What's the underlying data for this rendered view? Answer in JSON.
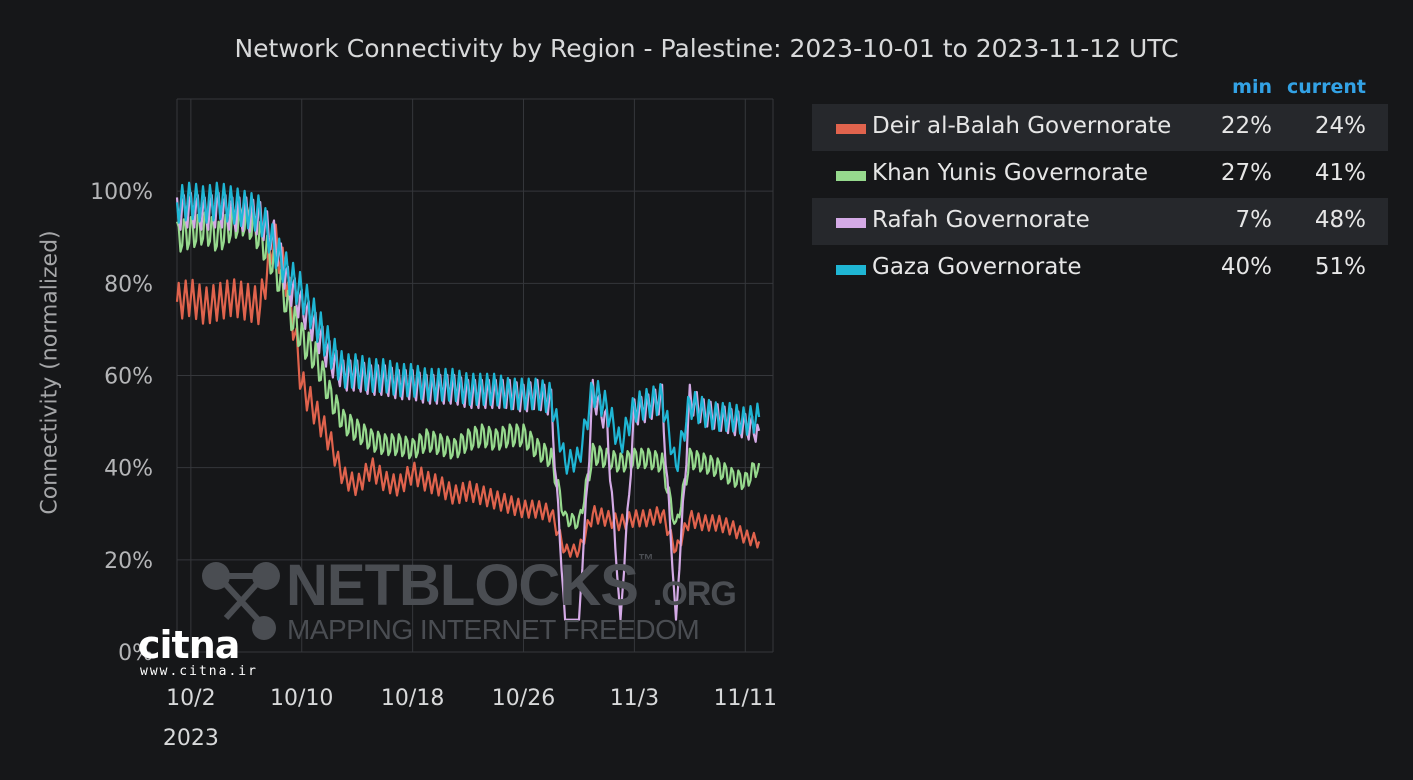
{
  "chart_data": {
    "type": "line",
    "title": "Network Connectivity by Region - Palestine: 2023-10-01 to 2023-11-12 UTC",
    "ylabel": "Connectivity (normalized)",
    "xlabel": "",
    "ylim": [
      0,
      120
    ],
    "xlim": [
      "2023-10-01",
      "2023-11-13"
    ],
    "y_ticks": [
      "0%",
      "20%",
      "40%",
      "60%",
      "80%",
      "100%"
    ],
    "y_tick_values": [
      0,
      20,
      40,
      60,
      80,
      100
    ],
    "x_ticks": [
      "10/2",
      "10/10",
      "10/18",
      "10/26",
      "11/3",
      "11/11"
    ],
    "x_tick_dates": [
      "2023-10-02",
      "2023-10-10",
      "2023-10-18",
      "2023-10-26",
      "2023-11-03",
      "2023-11-11"
    ],
    "x_year_label": "2023",
    "grid": true,
    "legend_position": "right",
    "legend_headers": {
      "min": "min",
      "current": "current"
    },
    "series": [
      {
        "name": "Deir al-Balah Governorate",
        "color": "#e0634d",
        "min": "22%",
        "current": "24%",
        "points": [
          [
            "2023-10-01",
            76
          ],
          [
            "2023-10-02",
            77
          ],
          [
            "2023-10-03",
            75
          ],
          [
            "2023-10-04",
            76
          ],
          [
            "2023-10-05",
            77
          ],
          [
            "2023-10-06",
            76
          ],
          [
            "2023-10-07",
            75
          ],
          [
            "2023-10-08",
            90
          ],
          [
            "2023-10-09",
            80
          ],
          [
            "2023-10-10",
            58
          ],
          [
            "2023-10-11",
            52
          ],
          [
            "2023-10-12",
            46
          ],
          [
            "2023-10-13",
            38
          ],
          [
            "2023-10-14",
            36
          ],
          [
            "2023-10-15",
            40
          ],
          [
            "2023-10-16",
            37
          ],
          [
            "2023-10-17",
            36
          ],
          [
            "2023-10-18",
            39
          ],
          [
            "2023-10-19",
            37
          ],
          [
            "2023-10-20",
            36
          ],
          [
            "2023-10-21",
            34
          ],
          [
            "2023-10-22",
            35
          ],
          [
            "2023-10-23",
            34
          ],
          [
            "2023-10-24",
            33
          ],
          [
            "2023-10-25",
            32
          ],
          [
            "2023-10-26",
            31
          ],
          [
            "2023-10-27",
            31
          ],
          [
            "2023-10-28",
            30
          ],
          [
            "2023-10-29",
            22
          ],
          [
            "2023-10-30",
            22
          ],
          [
            "2023-10-31",
            30
          ],
          [
            "2023-11-01",
            29
          ],
          [
            "2023-11-02",
            28
          ],
          [
            "2023-11-03",
            29
          ],
          [
            "2023-11-04",
            29
          ],
          [
            "2023-11-05",
            30
          ],
          [
            "2023-11-06",
            22
          ],
          [
            "2023-11-07",
            29
          ],
          [
            "2023-11-08",
            28
          ],
          [
            "2023-11-09",
            28
          ],
          [
            "2023-11-10",
            27
          ],
          [
            "2023-11-11",
            25
          ],
          [
            "2023-11-12",
            24
          ]
        ]
      },
      {
        "name": "Khan Yunis Governorate",
        "color": "#96d98d",
        "min": "27%",
        "current": "41%",
        "points": [
          [
            "2023-10-01",
            90
          ],
          [
            "2023-10-02",
            91
          ],
          [
            "2023-10-03",
            92
          ],
          [
            "2023-10-04",
            90
          ],
          [
            "2023-10-05",
            93
          ],
          [
            "2023-10-06",
            94
          ],
          [
            "2023-10-07",
            90
          ],
          [
            "2023-10-08",
            84
          ],
          [
            "2023-10-09",
            75
          ],
          [
            "2023-10-10",
            68
          ],
          [
            "2023-10-11",
            64
          ],
          [
            "2023-10-12",
            56
          ],
          [
            "2023-10-13",
            50
          ],
          [
            "2023-10-14",
            48
          ],
          [
            "2023-10-15",
            46
          ],
          [
            "2023-10-16",
            45
          ],
          [
            "2023-10-17",
            45
          ],
          [
            "2023-10-18",
            44
          ],
          [
            "2023-10-19",
            46
          ],
          [
            "2023-10-20",
            45
          ],
          [
            "2023-10-21",
            44
          ],
          [
            "2023-10-22",
            46
          ],
          [
            "2023-10-23",
            47
          ],
          [
            "2023-10-24",
            46
          ],
          [
            "2023-10-25",
            47
          ],
          [
            "2023-10-26",
            47
          ],
          [
            "2023-10-27",
            44
          ],
          [
            "2023-10-28",
            42
          ],
          [
            "2023-10-29",
            29
          ],
          [
            "2023-10-30",
            28
          ],
          [
            "2023-10-31",
            43
          ],
          [
            "2023-11-01",
            42
          ],
          [
            "2023-11-02",
            41
          ],
          [
            "2023-11-03",
            42
          ],
          [
            "2023-11-04",
            42
          ],
          [
            "2023-11-05",
            41
          ],
          [
            "2023-11-06",
            27
          ],
          [
            "2023-11-07",
            42
          ],
          [
            "2023-11-08",
            41
          ],
          [
            "2023-11-09",
            40
          ],
          [
            "2023-11-10",
            38
          ],
          [
            "2023-11-11",
            37
          ],
          [
            "2023-11-12",
            41
          ]
        ]
      },
      {
        "name": "Rafah Governorate",
        "color": "#d4aae6",
        "min": "7%",
        "current": "48%",
        "points": [
          [
            "2023-10-01",
            95
          ],
          [
            "2023-10-02",
            96
          ],
          [
            "2023-10-03",
            95
          ],
          [
            "2023-10-04",
            96
          ],
          [
            "2023-10-05",
            95
          ],
          [
            "2023-10-06",
            95
          ],
          [
            "2023-10-07",
            94
          ],
          [
            "2023-10-08",
            90
          ],
          [
            "2023-10-09",
            80
          ],
          [
            "2023-10-10",
            75
          ],
          [
            "2023-10-11",
            70
          ],
          [
            "2023-10-12",
            64
          ],
          [
            "2023-10-13",
            60
          ],
          [
            "2023-10-14",
            60
          ],
          [
            "2023-10-15",
            59
          ],
          [
            "2023-10-16",
            59
          ],
          [
            "2023-10-17",
            58
          ],
          [
            "2023-10-18",
            58
          ],
          [
            "2023-10-19",
            57
          ],
          [
            "2023-10-20",
            57
          ],
          [
            "2023-10-21",
            57
          ],
          [
            "2023-10-22",
            56
          ],
          [
            "2023-10-23",
            56
          ],
          [
            "2023-10-24",
            56
          ],
          [
            "2023-10-25",
            56
          ],
          [
            "2023-10-26",
            55
          ],
          [
            "2023-10-27",
            56
          ],
          [
            "2023-10-28",
            54
          ],
          [
            "2023-10-29",
            7
          ],
          [
            "2023-10-30",
            7
          ],
          [
            "2023-10-31",
            56
          ],
          [
            "2023-11-01",
            50
          ],
          [
            "2023-11-02",
            7
          ],
          [
            "2023-11-03",
            52
          ],
          [
            "2023-11-04",
            53
          ],
          [
            "2023-11-05",
            55
          ],
          [
            "2023-11-06",
            7
          ],
          [
            "2023-11-07",
            55
          ],
          [
            "2023-11-08",
            52
          ],
          [
            "2023-11-09",
            51
          ],
          [
            "2023-11-10",
            50
          ],
          [
            "2023-11-11",
            49
          ],
          [
            "2023-11-12",
            48
          ]
        ]
      },
      {
        "name": "Gaza Governorate",
        "color": "#1fb6d4",
        "min": "40%",
        "current": "51%",
        "points": [
          [
            "2023-10-01",
            97
          ],
          [
            "2023-10-02",
            98
          ],
          [
            "2023-10-03",
            97
          ],
          [
            "2023-10-04",
            98
          ],
          [
            "2023-10-05",
            97
          ],
          [
            "2023-10-06",
            96
          ],
          [
            "2023-10-07",
            95
          ],
          [
            "2023-10-08",
            88
          ],
          [
            "2023-10-09",
            82
          ],
          [
            "2023-10-10",
            78
          ],
          [
            "2023-10-11",
            72
          ],
          [
            "2023-10-12",
            66
          ],
          [
            "2023-10-13",
            61
          ],
          [
            "2023-10-14",
            61
          ],
          [
            "2023-10-15",
            60
          ],
          [
            "2023-10-16",
            60
          ],
          [
            "2023-10-17",
            59
          ],
          [
            "2023-10-18",
            59
          ],
          [
            "2023-10-19",
            58
          ],
          [
            "2023-10-20",
            58
          ],
          [
            "2023-10-21",
            58
          ],
          [
            "2023-10-22",
            57
          ],
          [
            "2023-10-23",
            57
          ],
          [
            "2023-10-24",
            57
          ],
          [
            "2023-10-25",
            56
          ],
          [
            "2023-10-26",
            56
          ],
          [
            "2023-10-27",
            56
          ],
          [
            "2023-10-28",
            55
          ],
          [
            "2023-10-29",
            41
          ],
          [
            "2023-10-30",
            42
          ],
          [
            "2023-10-31",
            57
          ],
          [
            "2023-11-01",
            53
          ],
          [
            "2023-11-02",
            45
          ],
          [
            "2023-11-03",
            53
          ],
          [
            "2023-11-04",
            54
          ],
          [
            "2023-11-05",
            55
          ],
          [
            "2023-11-06",
            40
          ],
          [
            "2023-11-07",
            54
          ],
          [
            "2023-11-08",
            52
          ],
          [
            "2023-11-09",
            51
          ],
          [
            "2023-11-10",
            51
          ],
          [
            "2023-11-11",
            50
          ],
          [
            "2023-11-12",
            51
          ]
        ]
      }
    ]
  },
  "watermark": {
    "brand": "NETBLOCKS",
    "tm": "™",
    "org": ".ORG",
    "tagline": "MAPPING INTERNET FREEDOM",
    "logo_icon": "network-nodes-icon"
  },
  "citna": {
    "logo": "citna",
    "url": "www.citna.ir"
  }
}
